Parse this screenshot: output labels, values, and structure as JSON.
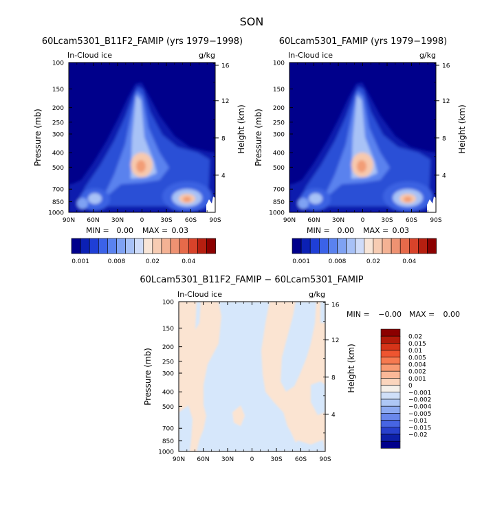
{
  "season": "SON",
  "variable_label": "In-Cloud ice",
  "units": "g/kg",
  "colors": {
    "background": "#00008b",
    "core_light": "#ffe6d2",
    "core_mid": "#f5a77a",
    "neg_fill": "#d6e7fb",
    "pos_fill": "#fbe4d2"
  },
  "chart_data": [
    {
      "type": "heatmap",
      "title": "60Lcam5301_B11F2_FAMIP (yrs 1979−1998)",
      "xlabel": "",
      "ylabel": "Pressure (mb)",
      "y2label": "Height (km)",
      "x_ticks": [
        "90N",
        "60N",
        "30N",
        "0",
        "30S",
        "60S",
        "90S"
      ],
      "y_ticks": [
        "100",
        "150",
        "200",
        "250",
        "300",
        "400",
        "500",
        "700",
        "850",
        "1000"
      ],
      "y2_ticks": [
        "16",
        "12",
        "8",
        "4"
      ],
      "stats": {
        "min_label": "MIN =",
        "min": "0.00",
        "max_label": "MAX =",
        "max": "0.03"
      },
      "colorbar": {
        "labels": [
          "0.001",
          "0.008",
          "0.02",
          "0.04"
        ],
        "colors": [
          "#00008b",
          "#0b20b4",
          "#1f3fd6",
          "#3b62e8",
          "#5a82ef",
          "#7fa2f3",
          "#a7c1f7",
          "#cfdcf9",
          "#f8e5d7",
          "#f7ccb3",
          "#f4b294",
          "#ee9272",
          "#e66a4a",
          "#d8432a",
          "#b61f10",
          "#8b0000"
        ]
      }
    },
    {
      "type": "heatmap",
      "title": "60Lcam5301_FAMIP (yrs 1979−1998)",
      "xlabel": "",
      "ylabel": "Pressure (mb)",
      "y2label": "Height (km)",
      "x_ticks": [
        "90N",
        "60N",
        "30N",
        "0",
        "30S",
        "60S",
        "90S"
      ],
      "y_ticks": [
        "100",
        "150",
        "200",
        "250",
        "300",
        "400",
        "500",
        "700",
        "850",
        "1000"
      ],
      "y2_ticks": [
        "16",
        "12",
        "8",
        "4"
      ],
      "stats": {
        "min_label": "MIN =",
        "min": "0.00",
        "max_label": "MAX =",
        "max": "0.03"
      },
      "colorbar": {
        "labels": [
          "0.001",
          "0.008",
          "0.02",
          "0.04"
        ],
        "colors": [
          "#00008b",
          "#0b20b4",
          "#1f3fd6",
          "#3b62e8",
          "#5a82ef",
          "#7fa2f3",
          "#a7c1f7",
          "#cfdcf9",
          "#f8e5d7",
          "#f7ccb3",
          "#f4b294",
          "#ee9272",
          "#e66a4a",
          "#d8432a",
          "#b61f10",
          "#8b0000"
        ]
      }
    },
    {
      "type": "heatmap",
      "title": "60Lcam5301_B11F2_FAMIP − 60Lcam5301_FAMIP",
      "xlabel": "",
      "ylabel": "Pressure (mb)",
      "y2label": "Height (km)",
      "x_ticks": [
        "90N",
        "60N",
        "30N",
        "0",
        "30S",
        "60S",
        "90S"
      ],
      "y_ticks": [
        "100",
        "150",
        "200",
        "250",
        "300",
        "400",
        "500",
        "700",
        "850",
        "1000"
      ],
      "y2_ticks": [
        "16",
        "12",
        "8",
        "4"
      ],
      "stats": {
        "min_label": "MIN =",
        "min": "−0.00",
        "max_label": "MAX =",
        "max": "0.00"
      },
      "colorbar": {
        "labels": [
          "0.02",
          "0.015",
          "0.01",
          "0.005",
          "0.004",
          "0.002",
          "0.001",
          "0",
          "−0.001",
          "−0.002",
          "−0.004",
          "−0.005",
          "−0.01",
          "−0.015",
          "−0.02"
        ],
        "colors": [
          "#8b0000",
          "#b21a0a",
          "#d63419",
          "#ee5530",
          "#f67a50",
          "#f89a72",
          "#fab898",
          "#fbd5bd",
          "#f5f0ea",
          "#cfdff8",
          "#aec7f5",
          "#8daaf1",
          "#6a88ec",
          "#4765e3",
          "#2840cc",
          "#0d1fa8",
          "#00008b"
        ]
      }
    }
  ]
}
